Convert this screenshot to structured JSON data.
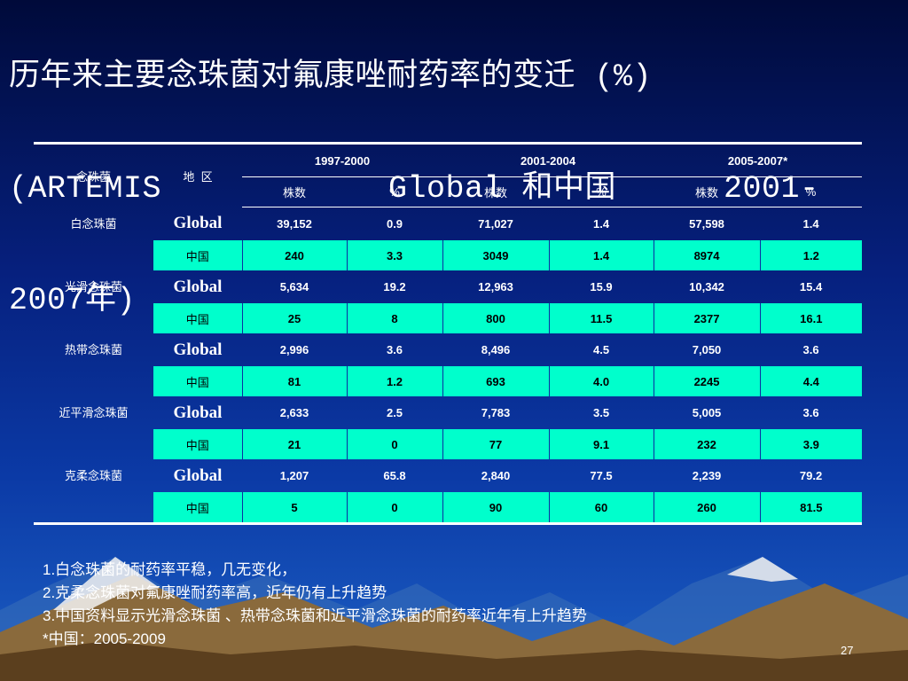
{
  "title": {
    "line1": "历年来主要念珠菌对氟康唑耐药率的变迁 (%)",
    "line2_part1": "(ARTEMIS",
    "line2_part2": "Global 和中国",
    "line2_part3": "2001-",
    "line3": "2007年)"
  },
  "table": {
    "col_species": "念珠菌",
    "col_region": "地  区",
    "periods": [
      "1997-2000",
      "2001-2004",
      "2005-2007*"
    ],
    "sub_headers": [
      "株数",
      "%",
      "株数",
      "%",
      "株数",
      "%"
    ],
    "groups": [
      {
        "species": "白念珠菌",
        "rows": [
          {
            "region": "Global",
            "values": [
              "39,152",
              "0.9",
              "71,027",
              "1.4",
              "57,598",
              "1.4"
            ]
          },
          {
            "region": "中国",
            "values": [
              "240",
              "3.3",
              "3049",
              "1.4",
              "8974",
              "1.2"
            ]
          }
        ]
      },
      {
        "species": "光滑念珠菌",
        "rows": [
          {
            "region": "Global",
            "values": [
              "5,634",
              "19.2",
              "12,963",
              "15.9",
              "10,342",
              "15.4"
            ]
          },
          {
            "region": "中国",
            "values": [
              "25",
              "8",
              "800",
              "11.5",
              "2377",
              "16.1"
            ]
          }
        ]
      },
      {
        "species": "热带念珠菌",
        "rows": [
          {
            "region": "Global",
            "values": [
              "2,996",
              "3.6",
              "8,496",
              "4.5",
              "7,050",
              "3.6"
            ]
          },
          {
            "region": "中国",
            "values": [
              "81",
              "1.2",
              "693",
              "4.0",
              "2245",
              "4.4"
            ]
          }
        ]
      },
      {
        "species": "近平滑念珠菌",
        "rows": [
          {
            "region": "Global",
            "values": [
              "2,633",
              "2.5",
              "7,783",
              "3.5",
              "5,005",
              "3.6"
            ]
          },
          {
            "region": "中国",
            "values": [
              "21",
              "0",
              "77",
              "9.1",
              "232",
              "3.9"
            ]
          }
        ]
      },
      {
        "species": "克柔念珠菌",
        "rows": [
          {
            "region": "Global",
            "values": [
              "1,207",
              "65.8",
              "2,840",
              "77.5",
              "2,239",
              "79.2"
            ]
          },
          {
            "region": "中国",
            "values": [
              "5",
              "0",
              "90",
              "60",
              "260",
              "81.5"
            ]
          }
        ]
      }
    ]
  },
  "notes": [
    "1.白念珠菌的耐药率平稳，几无变化，",
    "2.克柔念珠菌对氟康唑耐药率高，近年仍有上升趋势",
    "3.中国资料显示光滑念珠菌 、热带念珠菌和近平滑念珠菌的耐药率近年有上升趋势",
    "*中国：2005-2009"
  ],
  "page_number": "27",
  "colors": {
    "china_row_bg": "#00ffcc",
    "background_top": "#000a3a",
    "background_bottom": "#1c5fc4"
  }
}
